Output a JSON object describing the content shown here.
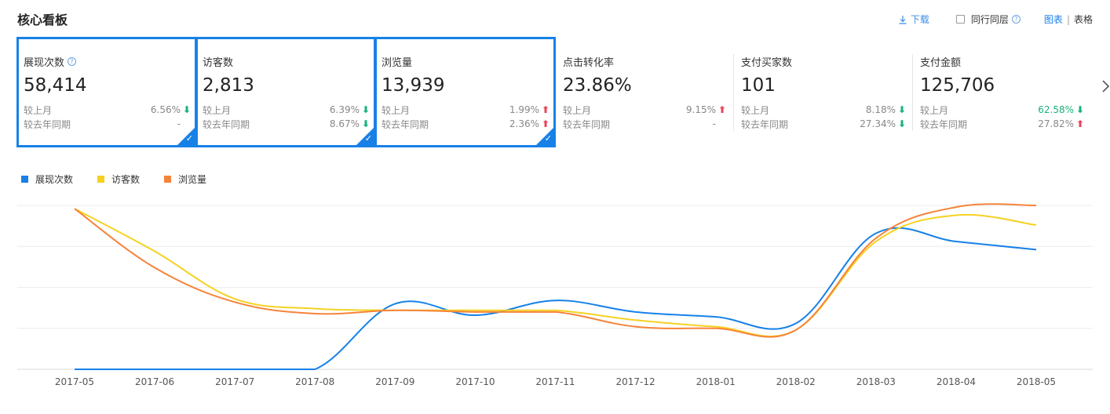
{
  "title": "核心看板",
  "toolbar": {
    "download_label": "下载",
    "peer_label": "同行同层",
    "view_chart": "图表",
    "view_table": "表格",
    "view_separator": "|"
  },
  "cards": [
    {
      "name": "展现次数",
      "value": "58,414",
      "month_label": "较上月",
      "month_pct": "6.56%",
      "month_dir": "down",
      "year_label": "较去年同期",
      "year_pct": "-",
      "year_dir": "",
      "selected": true,
      "has_help": true
    },
    {
      "name": "访客数",
      "value": "2,813",
      "month_label": "较上月",
      "month_pct": "6.39%",
      "month_dir": "down",
      "year_label": "较去年同期",
      "year_pct": "8.67%",
      "year_dir": "down",
      "selected": true
    },
    {
      "name": "浏览量",
      "value": "13,939",
      "month_label": "较上月",
      "month_pct": "1.99%",
      "month_dir": "up",
      "year_label": "较去年同期",
      "year_pct": "2.36%",
      "year_dir": "up",
      "selected": true
    },
    {
      "name": "点击转化率",
      "value": "23.86%",
      "month_label": "较上月",
      "month_pct": "9.15%",
      "month_dir": "up",
      "year_label": "较去年同期",
      "year_pct": "-",
      "year_dir": "",
      "selected": false
    },
    {
      "name": "支付买家数",
      "value": "101",
      "month_label": "较上月",
      "month_pct": "8.18%",
      "month_dir": "down",
      "year_label": "较去年同期",
      "year_pct": "27.34%",
      "year_dir": "down",
      "selected": false
    },
    {
      "name": "支付金额",
      "value": "125,706",
      "month_label": "较上月",
      "month_pct": "62.58%",
      "month_dir": "down",
      "month_green": true,
      "year_label": "较去年同期",
      "year_pct": "27.82%",
      "year_dir": "up",
      "selected": false
    }
  ],
  "colors": {
    "accent": "#1781e8",
    "up": "#e8445a",
    "down": "#17b37a"
  },
  "chart_data": {
    "type": "line",
    "categories": [
      "2017-05",
      "2017-06",
      "2017-07",
      "2017-08",
      "2017-09",
      "2017-10",
      "2017-11",
      "2017-12",
      "2018-01",
      "2018-02",
      "2018-03",
      "2018-04",
      "2018-05"
    ],
    "series": [
      {
        "name": "展现次数",
        "color": "#1781e8",
        "values": [
          0,
          0,
          0,
          0,
          0.4,
          0.33,
          0.42,
          0.35,
          0.32,
          0.28,
          0.83,
          0.78,
          0.73
        ]
      },
      {
        "name": "访客数",
        "color": "#f5d221",
        "values": [
          0.98,
          0.72,
          0.43,
          0.37,
          0.36,
          0.36,
          0.36,
          0.3,
          0.26,
          0.24,
          0.78,
          0.94,
          0.88
        ]
      },
      {
        "name": "浏览量",
        "color": "#f5843b",
        "values": [
          0.98,
          0.62,
          0.41,
          0.34,
          0.36,
          0.35,
          0.35,
          0.26,
          0.25,
          0.24,
          0.8,
          0.99,
          1.0
        ]
      }
    ],
    "grid": true,
    "ylim": [
      0,
      1
    ],
    "legend": "top-left"
  }
}
